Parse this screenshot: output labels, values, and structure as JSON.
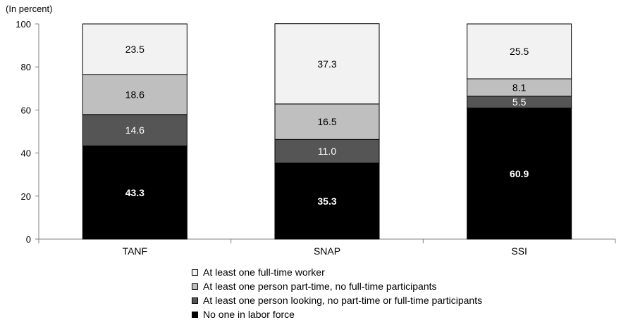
{
  "chart_data": {
    "type": "bar",
    "stacked": true,
    "unit_label": "(In percent)",
    "categories": [
      "TANF",
      "SNAP",
      "SSI"
    ],
    "ylim": [
      0,
      100
    ],
    "yticks": [
      "0",
      "20",
      "40",
      "60",
      "80",
      "100"
    ],
    "series": [
      {
        "name": "No one in labor force",
        "values": [
          43.3,
          35.3,
          60.9
        ],
        "labels": [
          "43.3",
          "35.3",
          "60.9"
        ],
        "color": "#000000",
        "label_color": "#ffffff",
        "label_bold": true
      },
      {
        "name": "At least one person looking, no part-time or full-time participants",
        "values": [
          14.6,
          11.0,
          5.5
        ],
        "labels": [
          "14.6",
          "11.0",
          "5.5"
        ],
        "color": "#555555",
        "label_color": "#ffffff",
        "label_bold": false
      },
      {
        "name": "At least one person part-time, no full-time participants",
        "values": [
          18.6,
          16.5,
          8.1
        ],
        "labels": [
          "18.6",
          "16.5",
          "8.1"
        ],
        "color": "#bfbfbf",
        "label_color": "#000000",
        "label_bold": false
      },
      {
        "name": "At least one full-time worker",
        "values": [
          23.5,
          37.3,
          25.5
        ],
        "labels": [
          "23.5",
          "37.3",
          "25.5"
        ],
        "color": "#f2f2f2",
        "label_color": "#000000",
        "label_bold": false
      }
    ],
    "legend_order": [
      3,
      2,
      1,
      0
    ],
    "legend_position": "bottom",
    "grid": false
  }
}
